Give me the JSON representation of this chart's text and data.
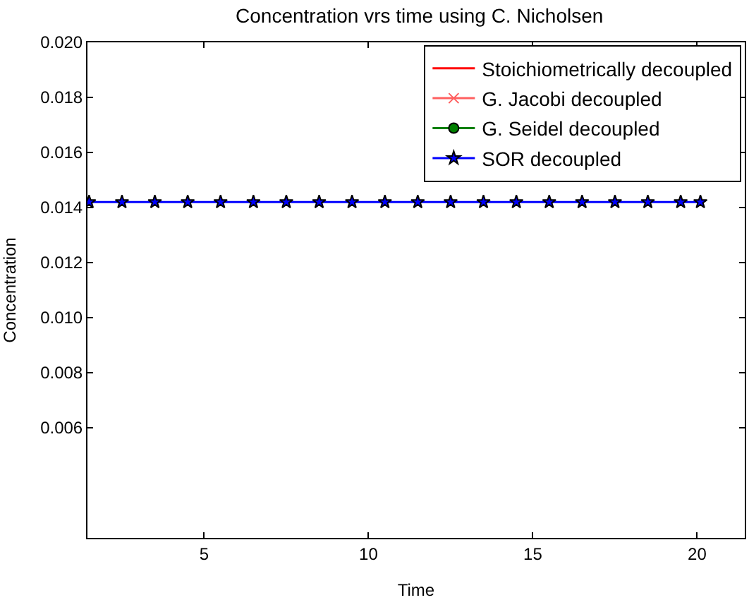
{
  "chart_data": {
    "type": "line",
    "title": "Concentration vrs time using C. Nicholsen",
    "xlabel": "Time",
    "ylabel": "Concentration",
    "x": [
      1.5,
      2.5,
      3.5,
      4.5,
      5.5,
      6.5,
      7.5,
      8.5,
      9.5,
      10.5,
      11.5,
      12.5,
      13.5,
      14.5,
      15.5,
      16.5,
      17.5,
      18.5,
      19.5,
      20.1
    ],
    "xlim": [
      1.45,
      21.45
    ],
    "xticks": [
      5,
      10,
      15,
      20
    ],
    "ylim": [
      0.002,
      0.02
    ],
    "yticks": [
      {
        "value": 0.006,
        "label": "0.006"
      },
      {
        "value": 0.008,
        "label": "0.008"
      },
      {
        "value": 0.01,
        "label": "0.010"
      },
      {
        "value": 0.012,
        "label": "0.012"
      },
      {
        "value": 0.014,
        "label": "0.014"
      },
      {
        "value": 0.016,
        "label": "0.016"
      },
      {
        "value": 0.018,
        "label": "0.018"
      },
      {
        "value": 0.02,
        "label": "0.020"
      }
    ],
    "grid": false,
    "legend": "top right",
    "series": [
      {
        "name": "Stoichiometrically decoupled",
        "color": "#ff0000",
        "marker": "none",
        "values": [
          null,
          null,
          null,
          null,
          null,
          null,
          null,
          null,
          null,
          null,
          null,
          null,
          null,
          null,
          null,
          null,
          null,
          null,
          null,
          null
        ]
      },
      {
        "name": "G. Jacobi decoupled",
        "color": "#ff6060",
        "marker": "cross",
        "values": [
          null,
          null,
          null,
          null,
          null,
          null,
          null,
          null,
          null,
          null,
          null,
          null,
          null,
          null,
          null,
          null,
          null,
          null,
          null,
          null
        ]
      },
      {
        "name": "G. Seidel decoupled",
        "color": "#007f00",
        "marker": "circle",
        "values": [
          null,
          null,
          null,
          null,
          null,
          null,
          null,
          null,
          null,
          null,
          null,
          null,
          null,
          null,
          null,
          null,
          null,
          null,
          null,
          null
        ]
      },
      {
        "name": "SOR decoupled",
        "color": "#0000ff",
        "marker": "star",
        "values": [
          0.0142,
          0.0142,
          0.0142,
          0.0142,
          0.0142,
          0.0142,
          0.0142,
          0.0142,
          0.0142,
          0.0142,
          0.0142,
          0.0142,
          0.0142,
          0.0142,
          0.0142,
          0.0142,
          0.0142,
          0.0142,
          0.0142,
          0.0142
        ]
      }
    ]
  }
}
